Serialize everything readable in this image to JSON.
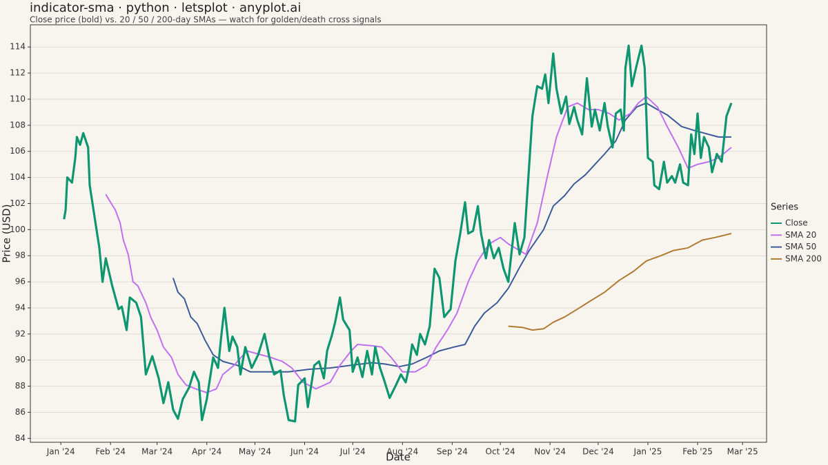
{
  "chart_data": {
    "type": "line",
    "title": "indicator-sma · python · letsplot · anyplot.ai",
    "subtitle": "Close price (bold) vs. 20 / 50 / 200-day SMAs — watch for golden/death cross signals",
    "x_label": "Date",
    "y_label": "Price (USD)",
    "legend_title": "Series",
    "legend_position": "right",
    "grid": "y",
    "xlim": [
      "2023-12-13",
      "2025-03-16"
    ],
    "xticks": [
      {
        "value": "2024-01-01",
        "label": "Jan '24"
      },
      {
        "value": "2024-02-01",
        "label": "Feb '24"
      },
      {
        "value": "2024-03-01",
        "label": "Mar '24"
      },
      {
        "value": "2024-04-01",
        "label": "Apr '24"
      },
      {
        "value": "2024-05-01",
        "label": "May '24"
      },
      {
        "value": "2024-06-01",
        "label": "Jun '24"
      },
      {
        "value": "2024-07-01",
        "label": "Jul '24"
      },
      {
        "value": "2024-08-01",
        "label": "Aug '24"
      },
      {
        "value": "2024-09-01",
        "label": "Sep '24"
      },
      {
        "value": "2024-10-01",
        "label": "Oct '24"
      },
      {
        "value": "2024-11-01",
        "label": "Nov '24"
      },
      {
        "value": "2024-12-01",
        "label": "Dec '24"
      },
      {
        "value": "2025-01-01",
        "label": "Jan '25"
      },
      {
        "value": "2025-02-01",
        "label": "Feb '25"
      },
      {
        "value": "2025-03-01",
        "label": "Mar '25"
      }
    ],
    "ylim": [
      83.7,
      115.7
    ],
    "yticks": [
      84,
      86,
      88,
      90,
      92,
      94,
      96,
      98,
      100,
      102,
      104,
      106,
      108,
      110,
      112,
      114
    ],
    "series": [
      {
        "name": "Close",
        "color": "#0e9671",
        "width": 3.2,
        "x": [
          "2024-01-03",
          "2024-01-04",
          "2024-01-05",
          "2024-01-08",
          "2024-01-10",
          "2024-01-11",
          "2024-01-13",
          "2024-01-15",
          "2024-01-18",
          "2024-01-19",
          "2024-01-23",
          "2024-01-25",
          "2024-01-27",
          "2024-01-29",
          "2024-02-02",
          "2024-02-06",
          "2024-02-08",
          "2024-02-11",
          "2024-02-13",
          "2024-02-17",
          "2024-02-20",
          "2024-02-23",
          "2024-02-27",
          "2024-03-02",
          "2024-03-05",
          "2024-03-08",
          "2024-03-11",
          "2024-03-14",
          "2024-03-17",
          "2024-03-21",
          "2024-03-24",
          "2024-03-27",
          "2024-03-29",
          "2024-04-01",
          "2024-04-05",
          "2024-04-08",
          "2024-04-10",
          "2024-04-12",
          "2024-04-15",
          "2024-04-17",
          "2024-04-20",
          "2024-04-22",
          "2024-04-25",
          "2024-04-29",
          "2024-05-03",
          "2024-05-07",
          "2024-05-10",
          "2024-05-13",
          "2024-05-17",
          "2024-05-19",
          "2024-05-22",
          "2024-05-26",
          "2024-05-28",
          "2024-06-01",
          "2024-06-03",
          "2024-06-07",
          "2024-06-10",
          "2024-06-13",
          "2024-06-15",
          "2024-06-18",
          "2024-06-20",
          "2024-06-23",
          "2024-06-25",
          "2024-06-29",
          "2024-07-01",
          "2024-07-04",
          "2024-07-07",
          "2024-07-10",
          "2024-07-13",
          "2024-07-15",
          "2024-07-18",
          "2024-07-21",
          "2024-07-24",
          "2024-07-28",
          "2024-07-31",
          "2024-08-03",
          "2024-08-05",
          "2024-08-07",
          "2024-08-10",
          "2024-08-12",
          "2024-08-15",
          "2024-08-18",
          "2024-08-21",
          "2024-08-24",
          "2024-08-27",
          "2024-08-29",
          "2024-08-31",
          "2024-09-03",
          "2024-09-06",
          "2024-09-09",
          "2024-09-11",
          "2024-09-14",
          "2024-09-17",
          "2024-09-19",
          "2024-09-22",
          "2024-09-24",
          "2024-09-27",
          "2024-09-30",
          "2024-10-03",
          "2024-10-06",
          "2024-10-10",
          "2024-10-13",
          "2024-10-16",
          "2024-10-19",
          "2024-10-21",
          "2024-10-24",
          "2024-10-27",
          "2024-10-29",
          "2024-10-31",
          "2024-11-03",
          "2024-11-05",
          "2024-11-08",
          "2024-11-11",
          "2024-11-13",
          "2024-11-16",
          "2024-11-18",
          "2024-11-21",
          "2024-11-24",
          "2024-11-27",
          "2024-11-29",
          "2024-12-02",
          "2024-12-05",
          "2024-12-07",
          "2024-12-10",
          "2024-12-12",
          "2024-12-15",
          "2024-12-17",
          "2024-12-18",
          "2024-12-20",
          "2024-12-22",
          "2024-12-25",
          "2024-12-28",
          "2024-12-30",
          "2025-01-01",
          "2025-01-04",
          "2025-01-05",
          "2025-01-08",
          "2025-01-11",
          "2025-01-13",
          "2025-01-16",
          "2025-01-18",
          "2025-01-21",
          "2025-01-23",
          "2025-01-26",
          "2025-01-28",
          "2025-01-30",
          "2025-02-01",
          "2025-02-03",
          "2025-02-05",
          "2025-02-08",
          "2025-02-10",
          "2025-02-13",
          "2025-02-16",
          "2025-02-19",
          "2025-02-22"
        ],
        "values": [
          100.8,
          101.5,
          104,
          103.6,
          105.5,
          107.1,
          106.5,
          107.4,
          106.3,
          103.4,
          100.2,
          98.6,
          96,
          97.8,
          95.7,
          93.9,
          94.1,
          92.3,
          94.8,
          94.4,
          93.3,
          88.9,
          90.3,
          88.6,
          86.7,
          88.3,
          86.2,
          85.5,
          87,
          87.9,
          89.1,
          88.3,
          85.4,
          87,
          90.2,
          89.4,
          91.8,
          94,
          90.7,
          91.8,
          91,
          88.9,
          91,
          89.4,
          90.4,
          92,
          90.2,
          88.9,
          89.2,
          87.3,
          85.4,
          85.3,
          88.1,
          88.6,
          86.4,
          89.6,
          89.9,
          88.6,
          90.7,
          91.9,
          92.9,
          94.8,
          93.1,
          92.3,
          89.1,
          90.2,
          88.7,
          90.7,
          88.9,
          91,
          89.4,
          88.3,
          87.1,
          88.1,
          88.9,
          88.3,
          89.4,
          91.2,
          90.4,
          92,
          91.2,
          92.6,
          97,
          96.3,
          93.3,
          93.6,
          93.9,
          97.6,
          99.7,
          102.1,
          99.7,
          99.9,
          101.8,
          99.7,
          97.8,
          99.2,
          97.8,
          98.6,
          97,
          96,
          100.5,
          98.1,
          99.4,
          105,
          108.7,
          111,
          110.8,
          111.9,
          109.7,
          113.5,
          110.8,
          108.9,
          110.2,
          108.1,
          109.4,
          108.4,
          107.3,
          111.6,
          107.9,
          109.2,
          107.6,
          109.7,
          107.9,
          106.3,
          108.9,
          109.2,
          107.6,
          112.4,
          114.1,
          111,
          112.6,
          114.1,
          112.4,
          105.5,
          105.2,
          103.4,
          103.1,
          105.2,
          103.6,
          104.1,
          103.6,
          105,
          103.6,
          103.4,
          107.3,
          105.8,
          108.9,
          105.5,
          107.1,
          106.3,
          104.4,
          105.8,
          105.2,
          108.7,
          109.7
        ]
      },
      {
        "name": "SMA 20",
        "color": "#bf6ff0",
        "width": 2,
        "x": [
          "2024-01-29",
          "2024-02-01",
          "2024-02-04",
          "2024-02-07",
          "2024-02-09",
          "2024-02-12",
          "2024-02-15",
          "2024-02-18",
          "2024-02-23",
          "2024-02-26",
          "2024-03-01",
          "2024-03-05",
          "2024-03-10",
          "2024-03-14",
          "2024-03-19",
          "2024-03-25",
          "2024-04-01",
          "2024-04-07",
          "2024-04-11",
          "2024-04-18",
          "2024-04-26",
          "2024-05-05",
          "2024-05-11",
          "2024-05-18",
          "2024-05-24",
          "2024-05-31",
          "2024-06-08",
          "2024-06-17",
          "2024-06-23",
          "2024-06-30",
          "2024-07-04",
          "2024-07-13",
          "2024-07-19",
          "2024-07-25",
          "2024-08-01",
          "2024-08-09",
          "2024-08-16",
          "2024-08-22",
          "2024-08-29",
          "2024-09-04",
          "2024-09-11",
          "2024-09-17",
          "2024-09-24",
          "2024-10-01",
          "2024-10-06",
          "2024-10-13",
          "2024-10-17",
          "2024-10-24",
          "2024-10-30",
          "2024-11-05",
          "2024-11-12",
          "2024-11-18",
          "2024-11-25",
          "2024-12-01",
          "2024-12-08",
          "2024-12-14",
          "2024-12-21",
          "2024-12-26",
          "2024-12-31",
          "2025-01-07",
          "2025-01-13",
          "2025-01-20",
          "2025-01-26",
          "2025-02-01",
          "2025-02-08",
          "2025-02-14",
          "2025-02-22"
        ],
        "values": [
          102.7,
          102.1,
          101.5,
          100.5,
          99.2,
          98.1,
          96,
          95.7,
          94.4,
          93.3,
          92.3,
          91,
          90.2,
          88.9,
          88.1,
          87.8,
          87.5,
          87.8,
          88.9,
          89.6,
          90.7,
          90.4,
          90.2,
          89.9,
          89.4,
          88.3,
          87.8,
          88.3,
          89.6,
          90.7,
          91.2,
          91.1,
          91,
          90.2,
          89.1,
          89.1,
          89.6,
          91,
          92.3,
          93.6,
          96,
          97.6,
          98.9,
          99.4,
          98.9,
          98.4,
          98.1,
          100.5,
          103.9,
          107.1,
          109.4,
          109.7,
          109.2,
          109.2,
          108.9,
          108.4,
          108.9,
          109.7,
          110.2,
          109.4,
          107.9,
          106.3,
          104.7,
          105,
          105.2,
          105.5,
          106.3
        ]
      },
      {
        "name": "SMA 50",
        "color": "#3a5a99",
        "width": 2,
        "x": [
          "2024-03-11",
          "2024-03-14",
          "2024-03-18",
          "2024-03-22",
          "2024-03-26",
          "2024-03-31",
          "2024-04-05",
          "2024-04-11",
          "2024-04-20",
          "2024-04-28",
          "2024-05-09",
          "2024-05-22",
          "2024-06-04",
          "2024-06-17",
          "2024-06-30",
          "2024-07-13",
          "2024-07-21",
          "2024-07-30",
          "2024-08-07",
          "2024-08-16",
          "2024-08-24",
          "2024-09-02",
          "2024-09-09",
          "2024-09-15",
          "2024-09-21",
          "2024-09-29",
          "2024-10-06",
          "2024-10-13",
          "2024-10-19",
          "2024-10-28",
          "2024-11-03",
          "2024-11-10",
          "2024-11-16",
          "2024-11-23",
          "2024-11-29",
          "2024-12-05",
          "2024-12-12",
          "2024-12-18",
          "2024-12-25",
          "2024-12-31",
          "2025-01-07",
          "2025-01-13",
          "2025-01-22",
          "2025-01-30",
          "2025-02-08",
          "2025-02-14",
          "2025-02-22"
        ],
        "values": [
          96.3,
          95.2,
          94.7,
          93.3,
          92.8,
          91.5,
          90.4,
          89.9,
          89.6,
          89.1,
          89.1,
          89.1,
          89.3,
          89.4,
          89.6,
          89.8,
          89.7,
          89.5,
          89.7,
          90.2,
          90.7,
          91,
          91.2,
          92.6,
          93.6,
          94.4,
          95.5,
          97.1,
          98.4,
          100,
          101.8,
          102.6,
          103.5,
          104.2,
          105,
          105.8,
          106.8,
          108.4,
          109.4,
          109.7,
          109.2,
          108.8,
          107.9,
          107.6,
          107.3,
          107.1,
          107.1
        ]
      },
      {
        "name": "SMA 200",
        "color": "#b07a30",
        "width": 2,
        "x": [
          "2024-10-06",
          "2024-10-15",
          "2024-10-21",
          "2024-10-28",
          "2024-11-03",
          "2024-11-10",
          "2024-11-18",
          "2024-11-27",
          "2024-12-05",
          "2024-12-14",
          "2024-12-23",
          "2024-12-31",
          "2025-01-09",
          "2025-01-17",
          "2025-01-26",
          "2025-02-04",
          "2025-02-12",
          "2025-02-22"
        ],
        "values": [
          92.6,
          92.5,
          92.3,
          92.4,
          92.9,
          93.3,
          93.9,
          94.6,
          95.2,
          96.1,
          96.8,
          97.6,
          98,
          98.4,
          98.6,
          99.2,
          99.4,
          99.7
        ]
      }
    ]
  }
}
